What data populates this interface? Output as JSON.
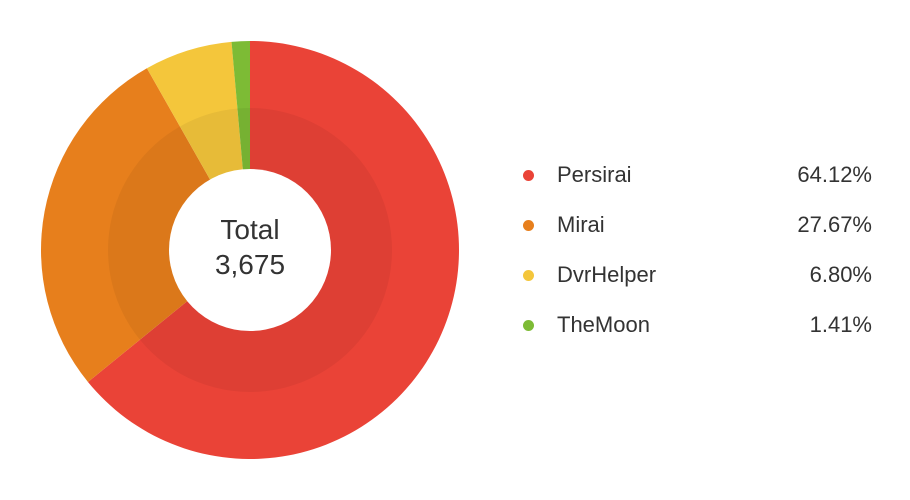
{
  "chart_data": {
    "type": "pie",
    "donut": true,
    "center": {
      "label": "Total",
      "value": "3,675"
    },
    "categories": [
      "Persirai",
      "Mirai",
      "DvrHelper",
      "TheMoon"
    ],
    "values": [
      64.12,
      27.67,
      6.8,
      1.41
    ],
    "value_labels": [
      "64.12%",
      "27.67%",
      "6.80%",
      "1.41%"
    ],
    "colors": [
      "#ea4337",
      "#e77f1c",
      "#f4c63b",
      "#7dbb35"
    ],
    "legend_position": "right"
  }
}
